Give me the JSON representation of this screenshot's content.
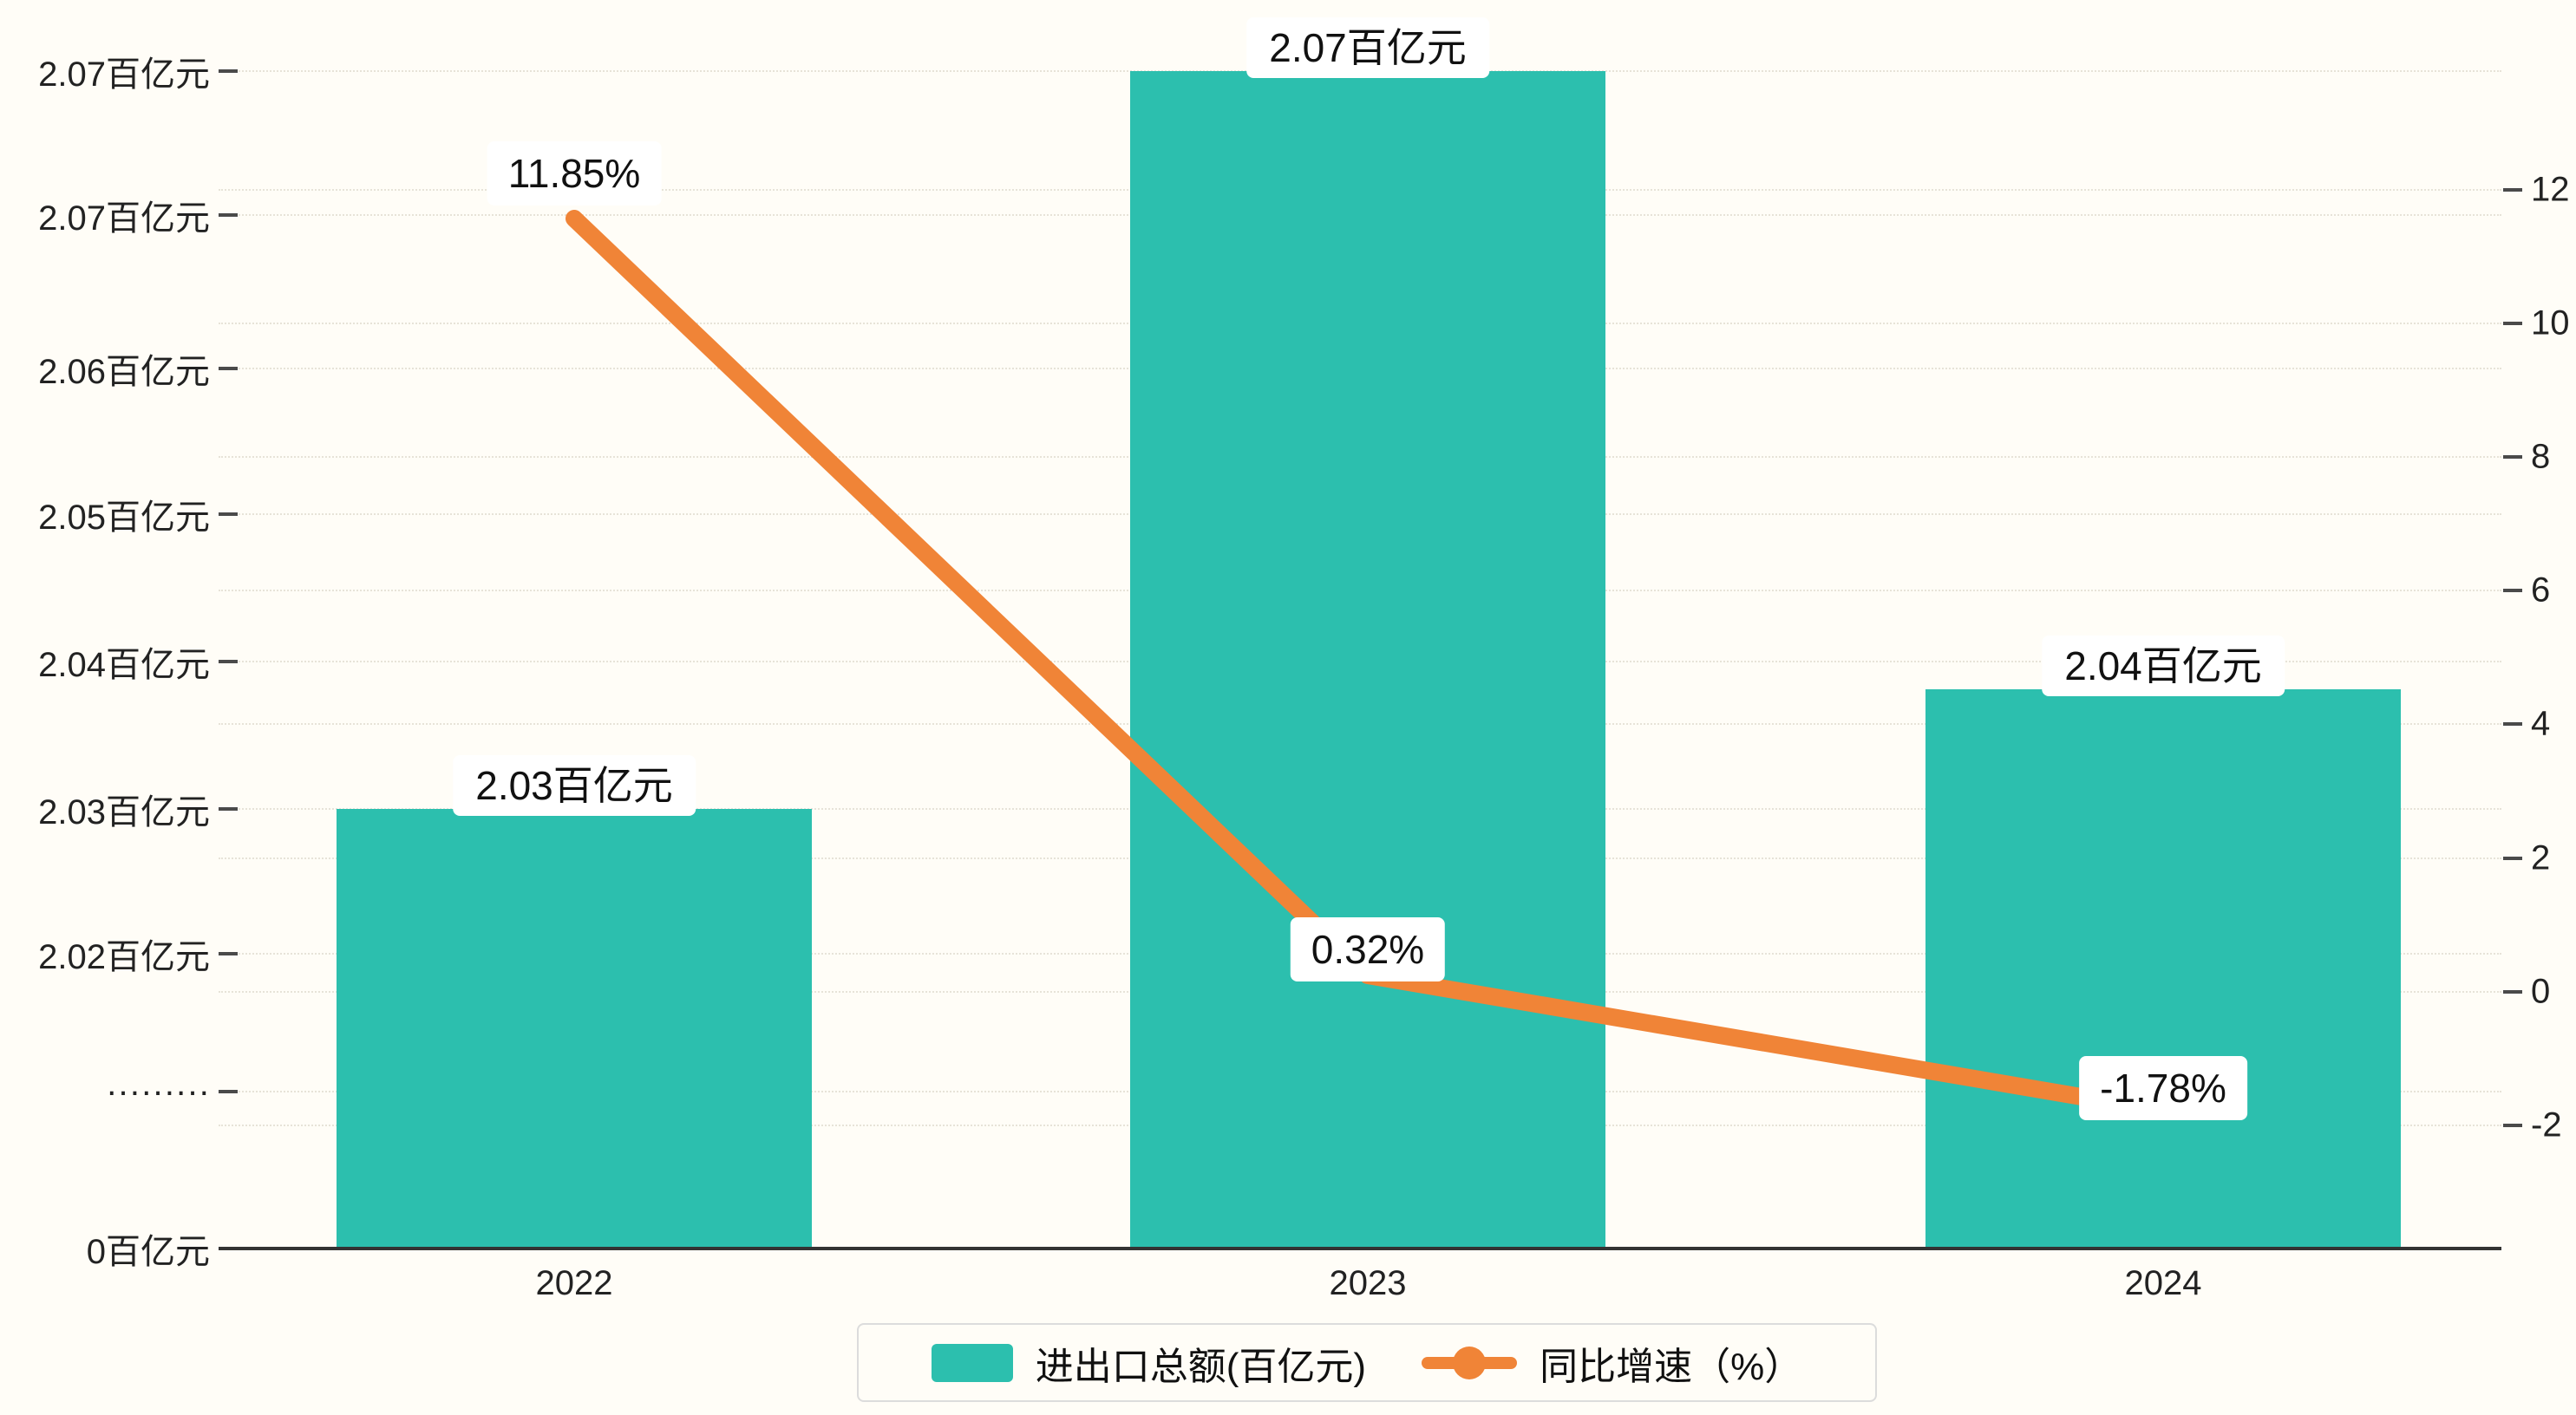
{
  "chart_data": {
    "type": "bar+line",
    "categories": [
      "2022",
      "2023",
      "2024"
    ],
    "series": [
      {
        "name": "进出口总额(百亿元)",
        "type": "bar",
        "values": [
          2.03,
          2.07,
          2.04
        ],
        "labels": [
          "2.03百亿元",
          "2.07百亿元",
          "2.04百亿元"
        ],
        "color": "#2cbfae"
      },
      {
        "name": "同比增速（%）",
        "type": "line",
        "values": [
          11.85,
          0.32,
          -1.78
        ],
        "labels": [
          "11.85%",
          "0.32%",
          "-1.78%"
        ],
        "color": "#f08437"
      }
    ],
    "left_axis": {
      "tick_labels_top_to_bottom": [
        "2.07百亿元",
        "2.07百亿元",
        "2.06百亿元",
        "2.05百亿元",
        "2.04百亿元",
        "2.03百亿元",
        "2.02百亿元",
        "·········",
        "0百亿元"
      ],
      "axis_break": true,
      "unit": "百亿元"
    },
    "right_axis": {
      "tick_labels_top_to_bottom": [
        "12",
        "10",
        "8",
        "6",
        "4",
        "2",
        "0",
        "-2"
      ],
      "min": -2,
      "max": 12
    },
    "legend": [
      {
        "label": "进出口总额(百亿元)",
        "marker": "bar-swatch",
        "color": "#2cbfae"
      },
      {
        "label": "同比增速（%）",
        "marker": "line-dot",
        "color": "#f08437"
      }
    ],
    "grid": true,
    "background": "#fffdf7"
  }
}
